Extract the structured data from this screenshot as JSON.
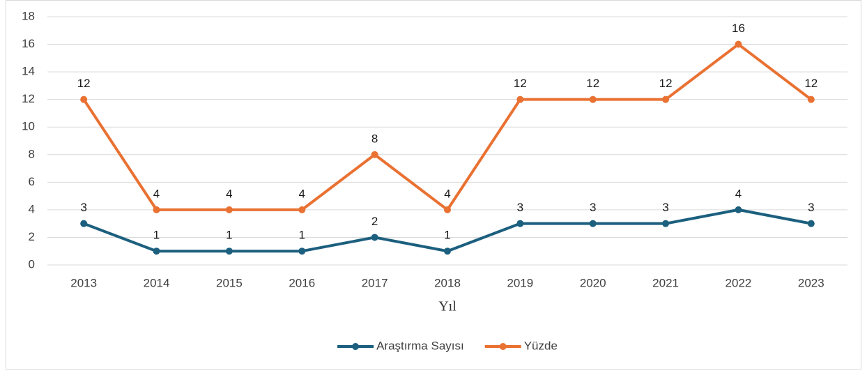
{
  "chart_data": {
    "type": "line",
    "xlabel": "Yıl",
    "categories": [
      "2013",
      "2014",
      "2015",
      "2016",
      "2017",
      "2018",
      "2019",
      "2020",
      "2021",
      "2022",
      "2023"
    ],
    "series": [
      {
        "name": "Araştırma Sayısı",
        "color": "#1c5f7e",
        "values": [
          3,
          1,
          1,
          1,
          2,
          1,
          3,
          3,
          3,
          4,
          3
        ]
      },
      {
        "name": "Yüzde",
        "color": "#e97132",
        "values": [
          12,
          4,
          4,
          4,
          8,
          4,
          12,
          12,
          12,
          16,
          12
        ]
      }
    ],
    "ylim": [
      0,
      18
    ],
    "yticks": [
      0,
      2,
      4,
      6,
      8,
      10,
      12,
      14,
      16,
      18
    ],
    "grid": true,
    "legend": "bottom",
    "data_labels": true
  }
}
